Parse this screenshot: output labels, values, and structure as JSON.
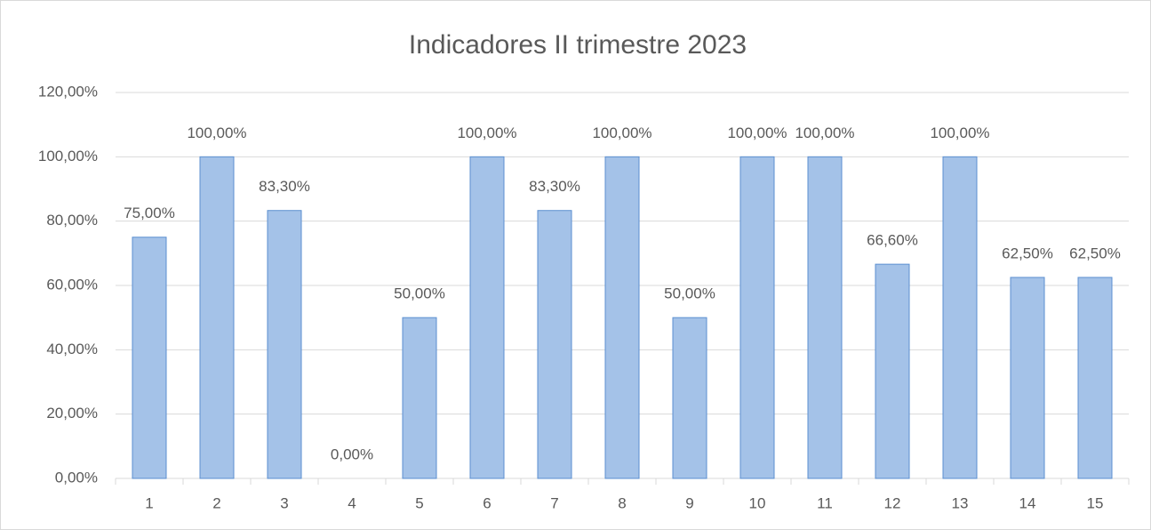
{
  "chart_data": {
    "type": "bar",
    "title": "Indicadores II trimestre 2023",
    "categories": [
      "1",
      "2",
      "3",
      "4",
      "5",
      "6",
      "7",
      "8",
      "9",
      "10",
      "11",
      "12",
      "13",
      "14",
      "15"
    ],
    "values": [
      75,
      100,
      83.3,
      0,
      50,
      100,
      83.3,
      100,
      50,
      100,
      100,
      66.6,
      100,
      62.5,
      62.5
    ],
    "value_labels": [
      "75,00%",
      "100,00%",
      "83,30%",
      "0,00%",
      "50,00%",
      "100,00%",
      "83,30%",
      "100,00%",
      "50,00%",
      "100,00%",
      "100,00%",
      "66,60%",
      "100,00%",
      "62,50%",
      "62,50%"
    ],
    "color": "#a4c2e8",
    "edge_color": "#5b8fd0",
    "ylim": [
      0,
      120
    ],
    "yticks": [
      {
        "value": 0,
        "label": "0,00%"
      },
      {
        "value": 20,
        "label": "20,00%"
      },
      {
        "value": 40,
        "label": "40,00%"
      },
      {
        "value": 60,
        "label": "60,00%"
      },
      {
        "value": 80,
        "label": "80,00%"
      },
      {
        "value": 100,
        "label": "100,00%"
      },
      {
        "value": 120,
        "label": "120,00%"
      }
    ],
    "grid": true
  }
}
